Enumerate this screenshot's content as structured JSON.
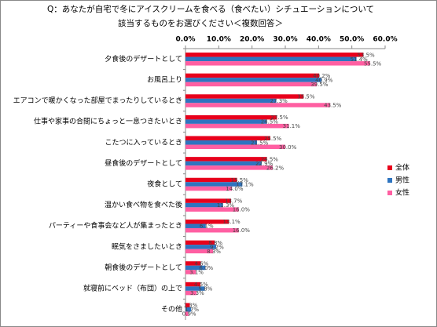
{
  "chart_data": {
    "type": "bar",
    "orientation": "horizontal",
    "title": [
      "Q：あなたが自宅で冬にアイスクリームを食べる（食べたい）シチュエーションについて",
      "該当するものをお選びください＜複数回答＞"
    ],
    "categories": [
      "夕食後のデザートとして",
      "お風呂上り",
      "エアコンで暖かくなった部屋でまったりしているとき",
      "仕事や家事の合間にちょっと一息つきたいとき",
      "こたつに入っているとき",
      "昼食後のデザートとして",
      "夜食として",
      "温かい食べ物を食べた後",
      "パーティーや食事会など人が集まったとき",
      "眠気をさましたいとき",
      "朝食後のデザートとして",
      "就寝前にベッド（布団）の上で",
      "その他"
    ],
    "series": [
      {
        "name": "全体",
        "color": "#e8001c",
        "values": [
          53.5,
          40.2,
          35.5,
          27.5,
          25.5,
          24.5,
          15.5,
          13.7,
          13.1,
          8.8,
          4.6,
          4.5,
          1.3
        ],
        "value_labels": [
          "53.5%",
          "40.2%",
          "35.5%",
          "27.5%",
          "25.5%",
          "24.5%",
          "15.5%",
          "13.7%",
          "13.1%",
          "8.8%",
          "4.6%",
          "4.5%",
          "1.3%"
        ]
      },
      {
        "name": "男性",
        "color": "#2e74c0",
        "values": [
          51.4,
          40.9,
          27.3,
          24.5,
          21.5,
          22.9,
          17.1,
          11.3,
          6.1,
          9.2,
          6.0,
          5.8,
          1.7
        ],
        "value_labels": [
          "51.4%",
          "40.9%",
          "27.3%",
          "24.5%",
          "21.5%",
          "22.9%",
          "17.1%",
          "11.3%",
          "6.1%",
          "9.2%",
          "6.0%",
          "5.8%",
          "1.7%"
        ]
      },
      {
        "name": "女性",
        "color": "#ff5fa2",
        "values": [
          55.5,
          39.5,
          43.5,
          31.1,
          30.0,
          26.2,
          14.0,
          16.0,
          16.0,
          8.3,
          3.1,
          3.3,
          0.9
        ],
        "value_labels": [
          "55.5%",
          "39.5%",
          "43.5%",
          "31.1%",
          "30.0%",
          "26.2%",
          "14.0%",
          "16.0%",
          "16.0%",
          "8.3%",
          "3.1%",
          "3.3%",
          "0.9%"
        ]
      }
    ],
    "xlim": [
      0,
      60
    ],
    "xticks": [
      {
        "value": 0,
        "label": "0.0%"
      },
      {
        "value": 10,
        "label": "10.0%"
      },
      {
        "value": 20,
        "label": "20.0%"
      },
      {
        "value": 30,
        "label": "30.0%"
      },
      {
        "value": 40,
        "label": "40.0%"
      },
      {
        "value": 50,
        "label": "50.0%"
      },
      {
        "value": 60,
        "label": "60.0%"
      }
    ],
    "legend": "right"
  }
}
